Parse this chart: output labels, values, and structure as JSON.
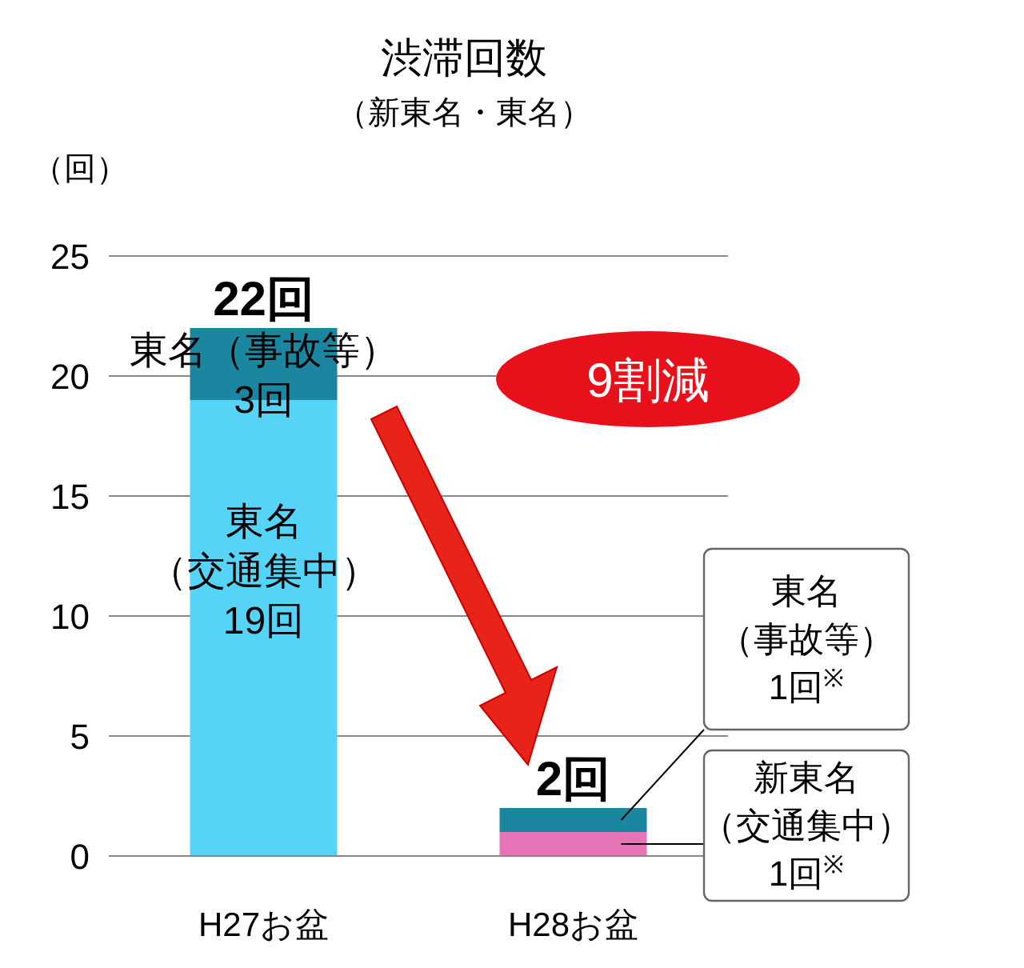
{
  "chart_data": {
    "type": "bar",
    "title": "渋滞回数",
    "subtitle": "（新東名・東名）",
    "ylabel": "（回）",
    "categories": [
      "H27お盆",
      "H28お盆"
    ],
    "stacked": true,
    "series": [
      {
        "color": "#55d4f7",
        "values": [
          19,
          null
        ]
      },
      {
        "color": "#e874b8",
        "values": [
          null,
          1
        ]
      },
      {
        "color": "#1a86a0",
        "values": [
          3,
          1
        ]
      }
    ],
    "totals": [
      "22回",
      "2回"
    ],
    "ylim": [
      0,
      25
    ],
    "yticks": [
      0,
      5,
      10,
      15,
      20,
      25
    ],
    "grid": "y",
    "annotations": [
      "東名（事故等）3回",
      "東名（交通集中）19回",
      "9割減",
      "東名（事故等）1回$^{※}$",
      "新東名（交通集中）1回$^{※}$"
    ]
  }
}
